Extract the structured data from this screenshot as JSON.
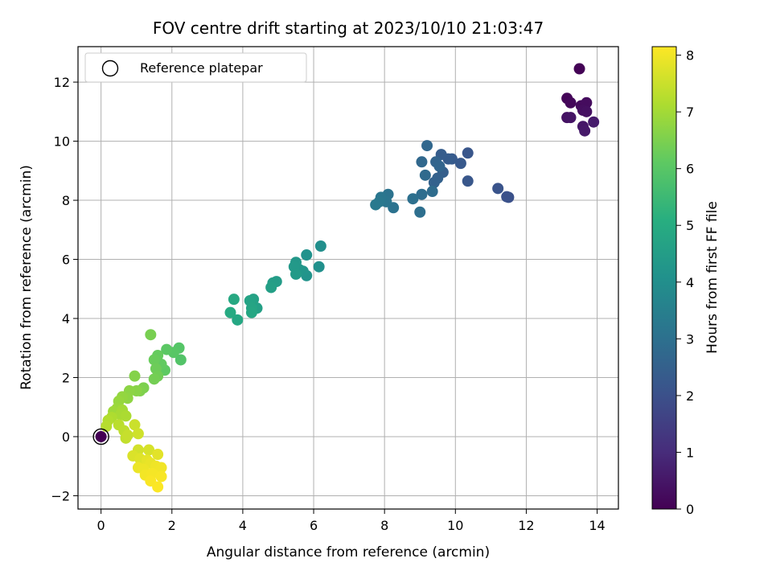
{
  "chart_data": {
    "type": "scatter",
    "title": "FOV centre drift starting at 2023/10/10 21:03:47",
    "xlabel": "Angular distance from reference (arcmin)",
    "ylabel": "Rotation from reference (arcmin)",
    "xlim": [
      -0.65,
      14.6
    ],
    "ylim": [
      -2.45,
      13.2
    ],
    "xticks": [
      0,
      2,
      4,
      6,
      8,
      10,
      12,
      14
    ],
    "yticks": [
      -2,
      0,
      2,
      4,
      6,
      8,
      10,
      12
    ],
    "grid": true,
    "colorbar": {
      "label": "Hours from first FF file",
      "range": [
        0,
        8.15
      ],
      "ticks": [
        0,
        1,
        2,
        3,
        4,
        5,
        6,
        7,
        8
      ],
      "colormap": "viridis"
    },
    "legend": {
      "placement": "top-left",
      "entries": [
        "Reference platepar"
      ]
    },
    "reference_point": {
      "x": 0,
      "y": 0
    },
    "points": [
      {
        "x": 0.0,
        "y": 0.0,
        "c": 0.0
      },
      {
        "x": 13.5,
        "y": 12.45,
        "c": 0.05
      },
      {
        "x": 13.15,
        "y": 11.45,
        "c": 0.1
      },
      {
        "x": 13.25,
        "y": 11.3,
        "c": 0.15
      },
      {
        "x": 13.55,
        "y": 11.2,
        "c": 0.2
      },
      {
        "x": 13.7,
        "y": 11.3,
        "c": 0.25
      },
      {
        "x": 13.6,
        "y": 11.05,
        "c": 0.3
      },
      {
        "x": 13.7,
        "y": 11.0,
        "c": 0.35
      },
      {
        "x": 13.15,
        "y": 10.8,
        "c": 0.4
      },
      {
        "x": 13.25,
        "y": 10.8,
        "c": 0.45
      },
      {
        "x": 13.6,
        "y": 10.5,
        "c": 0.5
      },
      {
        "x": 13.65,
        "y": 10.35,
        "c": 0.55
      },
      {
        "x": 13.9,
        "y": 10.65,
        "c": 0.6
      },
      {
        "x": 11.5,
        "y": 8.1,
        "c": 2.0
      },
      {
        "x": 11.45,
        "y": 8.12,
        "c": 2.05
      },
      {
        "x": 11.2,
        "y": 8.4,
        "c": 2.1
      },
      {
        "x": 10.35,
        "y": 9.6,
        "c": 2.15
      },
      {
        "x": 10.35,
        "y": 8.65,
        "c": 2.2
      },
      {
        "x": 10.15,
        "y": 9.25,
        "c": 2.25
      },
      {
        "x": 9.9,
        "y": 9.4,
        "c": 2.3
      },
      {
        "x": 9.8,
        "y": 9.4,
        "c": 2.35
      },
      {
        "x": 9.6,
        "y": 9.55,
        "c": 2.4
      },
      {
        "x": 9.65,
        "y": 8.95,
        "c": 2.45
      },
      {
        "x": 9.5,
        "y": 8.75,
        "c": 2.5
      },
      {
        "x": 9.4,
        "y": 8.6,
        "c": 2.55
      },
      {
        "x": 9.45,
        "y": 9.3,
        "c": 2.6
      },
      {
        "x": 9.55,
        "y": 9.15,
        "c": 2.65
      },
      {
        "x": 9.2,
        "y": 9.85,
        "c": 2.7
      },
      {
        "x": 9.05,
        "y": 9.3,
        "c": 2.75
      },
      {
        "x": 9.15,
        "y": 8.85,
        "c": 2.8
      },
      {
        "x": 9.35,
        "y": 8.3,
        "c": 2.85
      },
      {
        "x": 9.05,
        "y": 8.2,
        "c": 2.9
      },
      {
        "x": 9.0,
        "y": 7.6,
        "c": 2.95
      },
      {
        "x": 8.8,
        "y": 8.05,
        "c": 3.0
      },
      {
        "x": 8.25,
        "y": 7.75,
        "c": 3.05
      },
      {
        "x": 8.1,
        "y": 8.2,
        "c": 3.1
      },
      {
        "x": 8.05,
        "y": 7.95,
        "c": 3.15
      },
      {
        "x": 7.9,
        "y": 8.1,
        "c": 3.2
      },
      {
        "x": 7.85,
        "y": 7.95,
        "c": 3.25
      },
      {
        "x": 7.75,
        "y": 7.85,
        "c": 3.3
      },
      {
        "x": 6.2,
        "y": 6.45,
        "c": 4.0
      },
      {
        "x": 6.15,
        "y": 5.75,
        "c": 4.05
      },
      {
        "x": 5.8,
        "y": 6.15,
        "c": 4.1
      },
      {
        "x": 5.8,
        "y": 5.45,
        "c": 4.15
      },
      {
        "x": 5.7,
        "y": 5.6,
        "c": 4.2
      },
      {
        "x": 5.6,
        "y": 5.65,
        "c": 4.25
      },
      {
        "x": 5.5,
        "y": 5.9,
        "c": 4.3
      },
      {
        "x": 5.45,
        "y": 5.75,
        "c": 4.35
      },
      {
        "x": 5.5,
        "y": 5.5,
        "c": 4.4
      },
      {
        "x": 4.95,
        "y": 5.25,
        "c": 4.45
      },
      {
        "x": 4.85,
        "y": 5.2,
        "c": 4.5
      },
      {
        "x": 4.8,
        "y": 5.05,
        "c": 4.55
      },
      {
        "x": 4.4,
        "y": 4.35,
        "c": 4.6
      },
      {
        "x": 4.3,
        "y": 4.65,
        "c": 4.65
      },
      {
        "x": 4.2,
        "y": 4.6,
        "c": 4.7
      },
      {
        "x": 4.25,
        "y": 4.35,
        "c": 4.75
      },
      {
        "x": 4.25,
        "y": 4.2,
        "c": 4.8
      },
      {
        "x": 3.85,
        "y": 3.95,
        "c": 4.85
      },
      {
        "x": 3.75,
        "y": 4.65,
        "c": 4.9
      },
      {
        "x": 3.65,
        "y": 4.2,
        "c": 4.95
      },
      {
        "x": 2.25,
        "y": 2.6,
        "c": 5.9
      },
      {
        "x": 2.2,
        "y": 3.0,
        "c": 5.95
      },
      {
        "x": 2.05,
        "y": 2.85,
        "c": 6.0
      },
      {
        "x": 1.85,
        "y": 2.95,
        "c": 6.05
      },
      {
        "x": 1.8,
        "y": 2.25,
        "c": 6.1
      },
      {
        "x": 1.7,
        "y": 2.45,
        "c": 6.15
      },
      {
        "x": 1.6,
        "y": 2.75,
        "c": 6.2
      },
      {
        "x": 1.5,
        "y": 2.6,
        "c": 6.25
      },
      {
        "x": 1.55,
        "y": 2.3,
        "c": 6.3
      },
      {
        "x": 1.6,
        "y": 2.05,
        "c": 6.35
      },
      {
        "x": 1.5,
        "y": 1.95,
        "c": 6.4
      },
      {
        "x": 1.4,
        "y": 3.45,
        "c": 6.45
      },
      {
        "x": 1.2,
        "y": 1.65,
        "c": 6.5
      },
      {
        "x": 1.1,
        "y": 1.55,
        "c": 6.55
      },
      {
        "x": 0.95,
        "y": 2.05,
        "c": 6.6
      },
      {
        "x": 1.0,
        "y": 1.55,
        "c": 6.65
      },
      {
        "x": 0.8,
        "y": 1.55,
        "c": 6.7
      },
      {
        "x": 0.75,
        "y": 1.3,
        "c": 6.75
      },
      {
        "x": 0.6,
        "y": 1.35,
        "c": 6.8
      },
      {
        "x": 0.5,
        "y": 1.2,
        "c": 6.85
      },
      {
        "x": 0.45,
        "y": 0.95,
        "c": 6.9
      },
      {
        "x": 0.35,
        "y": 0.85,
        "c": 6.95
      },
      {
        "x": 0.6,
        "y": 0.9,
        "c": 7.0
      },
      {
        "x": 0.55,
        "y": 0.75,
        "c": 7.05
      },
      {
        "x": 0.7,
        "y": 0.7,
        "c": 7.1
      },
      {
        "x": 0.3,
        "y": 0.65,
        "c": 7.15
      },
      {
        "x": 0.2,
        "y": 0.55,
        "c": 7.2
      },
      {
        "x": 0.15,
        "y": 0.35,
        "c": 7.25
      },
      {
        "x": 0.5,
        "y": 0.4,
        "c": 7.3
      },
      {
        "x": 0.65,
        "y": 0.2,
        "c": 7.35
      },
      {
        "x": 0.7,
        "y": -0.05,
        "c": 7.4
      },
      {
        "x": 0.75,
        "y": 0.05,
        "c": 7.45
      },
      {
        "x": 0.95,
        "y": 0.4,
        "c": 7.5
      },
      {
        "x": 1.05,
        "y": 0.1,
        "c": 7.55
      },
      {
        "x": 1.05,
        "y": -0.45,
        "c": 7.6
      },
      {
        "x": 1.35,
        "y": -0.45,
        "c": 7.65
      },
      {
        "x": 0.9,
        "y": -0.65,
        "c": 7.7
      },
      {
        "x": 1.1,
        "y": -0.75,
        "c": 7.75
      },
      {
        "x": 1.6,
        "y": -0.6,
        "c": 7.8
      },
      {
        "x": 1.3,
        "y": -0.8,
        "c": 7.85
      },
      {
        "x": 1.4,
        "y": -0.9,
        "c": 7.9
      },
      {
        "x": 1.05,
        "y": -1.05,
        "c": 7.92
      },
      {
        "x": 1.2,
        "y": -1.1,
        "c": 7.95
      },
      {
        "x": 1.55,
        "y": -1.0,
        "c": 7.97
      },
      {
        "x": 1.7,
        "y": -1.05,
        "c": 8.0
      },
      {
        "x": 1.25,
        "y": -1.3,
        "c": 8.02
      },
      {
        "x": 1.45,
        "y": -1.25,
        "c": 8.05
      },
      {
        "x": 1.7,
        "y": -1.35,
        "c": 8.07
      },
      {
        "x": 1.4,
        "y": -1.5,
        "c": 8.1
      },
      {
        "x": 1.6,
        "y": -1.7,
        "c": 8.13
      }
    ]
  }
}
